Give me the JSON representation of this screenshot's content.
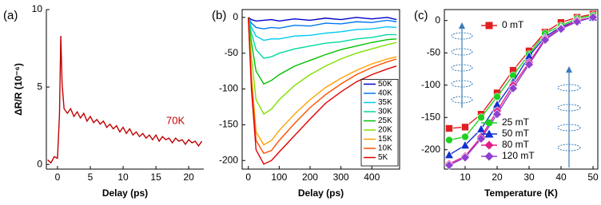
{
  "chart_data": [
    {
      "type": "line",
      "label": "(a)",
      "ylabel": "ΔR/R (10⁻⁶)",
      "xlabel": "Delay (ps)",
      "annotation": "70K",
      "x": [
        -1.5,
        -1,
        -0.5,
        0,
        0.3,
        0.5,
        0.7,
        1,
        1.5,
        2,
        2.5,
        3,
        3.5,
        4,
        4.5,
        5,
        5.5,
        6,
        6.5,
        7,
        7.5,
        8,
        8.5,
        9,
        9.5,
        10,
        10.5,
        11,
        11.5,
        12,
        12.5,
        13,
        13.5,
        14,
        14.5,
        15,
        15.5,
        16,
        16.5,
        17,
        17.5,
        18,
        18.5,
        19,
        19.5,
        20,
        20.5,
        21,
        21.5,
        22
      ],
      "series": [
        {
          "name": "70K",
          "color": "#c00000",
          "values": [
            0.3,
            0.1,
            0.5,
            0.4,
            3.2,
            8.3,
            5.2,
            3.6,
            3.3,
            3.6,
            3.1,
            3.4,
            3.0,
            3.3,
            2.8,
            3.1,
            2.7,
            2.9,
            2.6,
            2.8,
            2.4,
            2.6,
            2.3,
            2.5,
            2.1,
            2.4,
            2.0,
            2.3,
            1.9,
            2.1,
            1.8,
            2.0,
            1.7,
            1.9,
            1.6,
            1.9,
            1.5,
            1.8,
            1.6,
            1.7,
            1.4,
            1.7,
            1.5,
            1.6,
            1.3,
            1.6,
            1.4,
            1.5,
            1.2,
            1.5
          ]
        }
      ],
      "xlim": [
        -1.7,
        22.3
      ],
      "ylim": [
        -0.3,
        10
      ],
      "xticks": [
        0,
        5,
        10,
        15,
        20
      ],
      "yticks": [
        0,
        5,
        10
      ]
    },
    {
      "type": "line",
      "label": "(b)",
      "xlabel": "Delay (ps)",
      "legend": "lower right",
      "x": [
        0,
        10,
        25,
        50,
        75,
        100,
        150,
        200,
        250,
        300,
        350,
        400,
        450,
        480
      ],
      "series": [
        {
          "name": "50K",
          "color": "#0000c8",
          "values": [
            0,
            -3,
            -5,
            -4,
            -3,
            -5,
            -2,
            -4,
            -1,
            -3,
            0,
            -2,
            0,
            -3
          ]
        },
        {
          "name": "40K",
          "color": "#0078f0",
          "values": [
            0,
            -8,
            -14,
            -16,
            -14,
            -15,
            -11,
            -12,
            -8,
            -9,
            -6,
            -7,
            -4,
            -6
          ]
        },
        {
          "name": "35K",
          "color": "#00c8f0",
          "values": [
            0,
            -14,
            -26,
            -32,
            -30,
            -30,
            -26,
            -25,
            -22,
            -20,
            -17,
            -16,
            -13,
            -14
          ]
        },
        {
          "name": "30K",
          "color": "#00d8a0",
          "values": [
            0,
            -22,
            -45,
            -57,
            -55,
            -50,
            -44,
            -40,
            -36,
            -34,
            -30,
            -28,
            -24,
            -24
          ]
        },
        {
          "name": "25K",
          "color": "#00c000",
          "values": [
            0,
            -35,
            -75,
            -93,
            -88,
            -80,
            -68,
            -60,
            -52,
            -45,
            -40,
            -35,
            -31,
            -30
          ]
        },
        {
          "name": "20K",
          "color": "#80e000",
          "values": [
            0,
            -55,
            -115,
            -135,
            -128,
            -115,
            -95,
            -80,
            -68,
            -58,
            -50,
            -44,
            -38,
            -35
          ]
        },
        {
          "name": "15K",
          "color": "#ffa000",
          "values": [
            0,
            -80,
            -160,
            -178,
            -172,
            -158,
            -135,
            -115,
            -98,
            -85,
            -74,
            -65,
            -58,
            -55
          ]
        },
        {
          "name": "10K",
          "color": "#ff5000",
          "values": [
            0,
            -90,
            -172,
            -190,
            -186,
            -172,
            -148,
            -126,
            -108,
            -93,
            -80,
            -70,
            -62,
            -58
          ]
        },
        {
          "name": "5K",
          "color": "#e00000",
          "values": [
            0,
            -100,
            -185,
            -205,
            -200,
            -188,
            -165,
            -142,
            -120,
            -104,
            -90,
            -80,
            -72,
            -68
          ]
        }
      ],
      "xlim": [
        -20,
        490
      ],
      "ylim": [
        -212,
        11
      ],
      "xticks": [
        0,
        100,
        200,
        300,
        400
      ],
      "yticks": [
        0,
        -50,
        -100,
        -150,
        -200
      ]
    },
    {
      "type": "line",
      "label": "(c)",
      "xlabel": "Temperature (K)",
      "x": [
        5,
        10,
        15,
        20,
        25,
        30,
        35,
        40,
        45,
        50
      ],
      "series": [
        {
          "name": "0 mT",
          "color": "#e02020",
          "marker": "square",
          "values": [
            -167,
            -165,
            -145,
            -112,
            -77,
            -47,
            -18,
            -3,
            5,
            10
          ]
        },
        {
          "name": "25 mT",
          "color": "#20d020",
          "marker": "circle",
          "values": [
            -185,
            -180,
            -150,
            -118,
            -85,
            -52,
            -20,
            -8,
            3,
            8
          ]
        },
        {
          "name": "50 mT",
          "color": "#1030d0",
          "marker": "triangle",
          "values": [
            -208,
            -193,
            -168,
            -130,
            -95,
            -55,
            -25,
            -10,
            0,
            5
          ]
        },
        {
          "name": "80 mT",
          "color": "#e0208a",
          "marker": "diamond",
          "values": [
            -222,
            -210,
            -180,
            -140,
            -100,
            -65,
            -28,
            -12,
            0,
            5
          ]
        },
        {
          "name": "120 mT",
          "color": "#9040d0",
          "marker": "diamond",
          "values": [
            -224,
            -212,
            -183,
            -145,
            -105,
            -68,
            -30,
            -13,
            -2,
            5
          ]
        }
      ],
      "xlim": [
        3.5,
        51.5
      ],
      "ylim": [
        -230,
        17
      ],
      "xticks": [
        10,
        20,
        30,
        40,
        50
      ],
      "yticks": [
        0,
        -50,
        -100,
        -150,
        -200
      ]
    }
  ]
}
